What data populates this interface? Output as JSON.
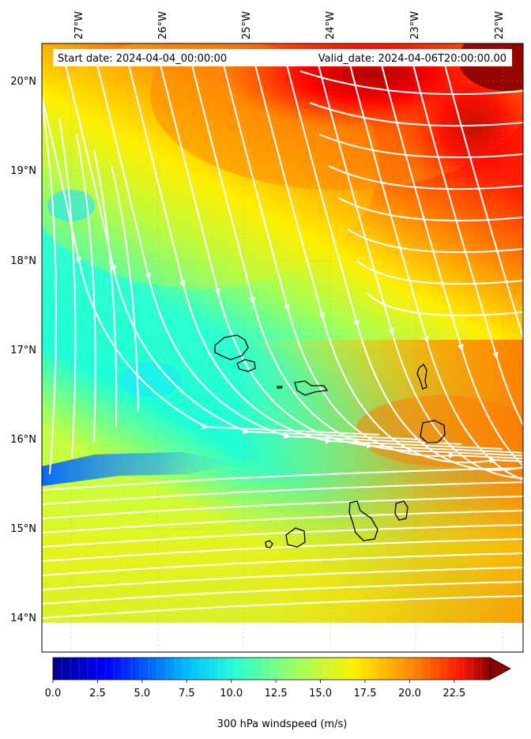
{
  "map": {
    "start_date": "Start date: 2024-04-04_00:00:00",
    "valid_date": "Valid_date: 2024-04-06T20:00:00.00",
    "lon_labels": [
      "27°W",
      "26°W",
      "25°W",
      "24°W",
      "23°W",
      "22°W"
    ],
    "lat_labels": [
      "20°N",
      "19°N",
      "18°N",
      "17°N",
      "16°N",
      "15°N",
      "14°N"
    ]
  },
  "colorbar": {
    "ticks": [
      "0.0",
      "2.5",
      "5.0",
      "7.5",
      "10.0",
      "12.5",
      "15.0",
      "17.5",
      "20.0",
      "22.5"
    ],
    "label": "300 hPa windspeed (m/s)",
    "colors": [
      "#00008f",
      "#0000ff",
      "#00bfff",
      "#2afed2",
      "#a0ff5f",
      "#ffef00",
      "#ff8a00",
      "#ff1a00",
      "#8b0000"
    ]
  }
}
